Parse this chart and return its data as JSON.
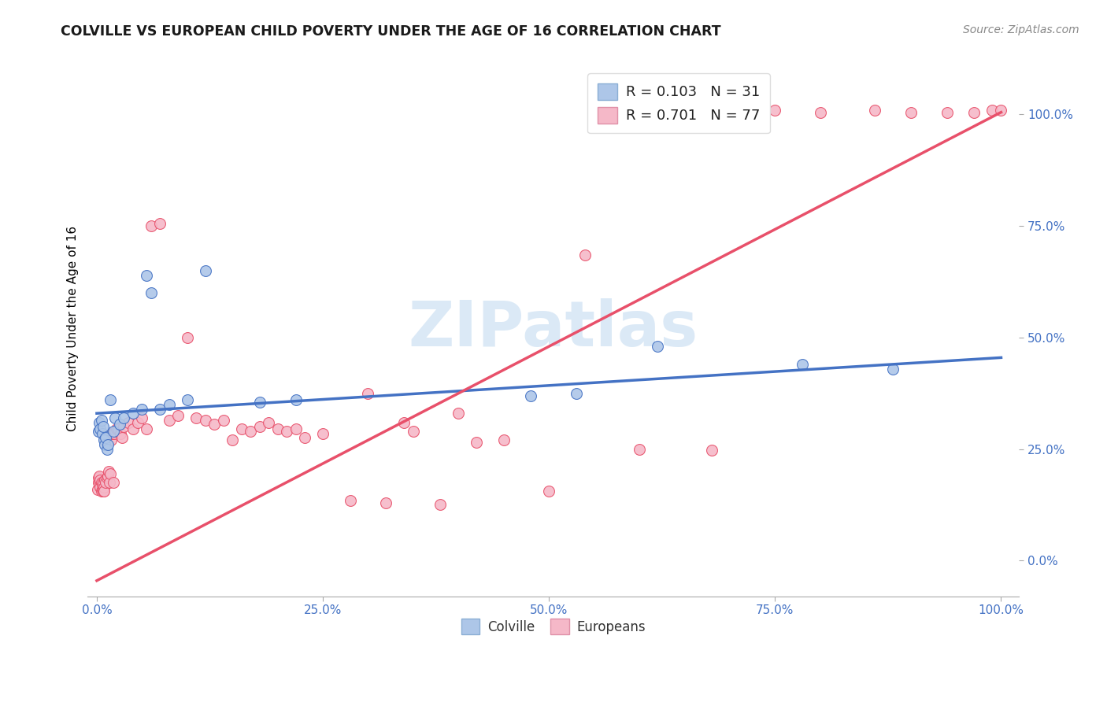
{
  "title": "COLVILLE VS EUROPEAN CHILD POVERTY UNDER THE AGE OF 16 CORRELATION CHART",
  "source": "Source: ZipAtlas.com",
  "ylabel": "Child Poverty Under the Age of 16",
  "colville_R": 0.103,
  "colville_N": 31,
  "european_R": 0.701,
  "european_N": 77,
  "colville_color": "#adc6e8",
  "european_color": "#f5b8c8",
  "colville_line_color": "#4472c4",
  "european_line_color": "#e8506a",
  "watermark_text": "ZIPatlas",
  "colville_x": [
    0.002,
    0.003,
    0.004,
    0.005,
    0.006,
    0.007,
    0.008,
    0.009,
    0.01,
    0.011,
    0.012,
    0.015,
    0.018,
    0.02,
    0.025,
    0.03,
    0.04,
    0.05,
    0.055,
    0.06,
    0.07,
    0.08,
    0.1,
    0.12,
    0.18,
    0.22,
    0.48,
    0.53,
    0.62,
    0.78,
    0.88
  ],
  "colville_y": [
    0.29,
    0.31,
    0.295,
    0.315,
    0.285,
    0.3,
    0.27,
    0.26,
    0.275,
    0.25,
    0.26,
    0.36,
    0.29,
    0.32,
    0.305,
    0.32,
    0.33,
    0.34,
    0.64,
    0.6,
    0.34,
    0.35,
    0.36,
    0.65,
    0.355,
    0.36,
    0.37,
    0.375,
    0.48,
    0.44,
    0.43
  ],
  "european_x": [
    0.001,
    0.002,
    0.002,
    0.003,
    0.003,
    0.004,
    0.004,
    0.005,
    0.005,
    0.006,
    0.006,
    0.007,
    0.007,
    0.008,
    0.008,
    0.009,
    0.01,
    0.011,
    0.012,
    0.013,
    0.014,
    0.015,
    0.016,
    0.017,
    0.018,
    0.019,
    0.02,
    0.022,
    0.024,
    0.026,
    0.028,
    0.03,
    0.035,
    0.04,
    0.045,
    0.05,
    0.055,
    0.06,
    0.07,
    0.08,
    0.09,
    0.1,
    0.11,
    0.12,
    0.13,
    0.14,
    0.15,
    0.16,
    0.17,
    0.18,
    0.19,
    0.2,
    0.21,
    0.22,
    0.23,
    0.25,
    0.28,
    0.3,
    0.32,
    0.34,
    0.35,
    0.38,
    0.4,
    0.42,
    0.45,
    0.5,
    0.54,
    0.6,
    0.68,
    0.75,
    0.8,
    0.86,
    0.9,
    0.94,
    0.97,
    0.99,
    1.0
  ],
  "european_y": [
    0.16,
    0.175,
    0.185,
    0.17,
    0.19,
    0.165,
    0.18,
    0.155,
    0.175,
    0.16,
    0.17,
    0.155,
    0.175,
    0.165,
    0.155,
    0.18,
    0.175,
    0.185,
    0.19,
    0.2,
    0.175,
    0.195,
    0.27,
    0.285,
    0.175,
    0.285,
    0.29,
    0.295,
    0.295,
    0.285,
    0.275,
    0.3,
    0.31,
    0.295,
    0.31,
    0.32,
    0.295,
    0.75,
    0.755,
    0.315,
    0.325,
    0.5,
    0.32,
    0.315,
    0.305,
    0.315,
    0.27,
    0.295,
    0.29,
    0.3,
    0.31,
    0.295,
    0.29,
    0.295,
    0.275,
    0.285,
    0.135,
    0.375,
    0.13,
    0.31,
    0.29,
    0.125,
    0.33,
    0.265,
    0.27,
    0.155,
    0.685,
    0.25,
    0.248,
    1.01,
    1.005,
    1.01,
    1.005,
    1.005,
    1.005,
    1.01,
    1.01
  ],
  "colville_trend_x": [
    0.0,
    1.0
  ],
  "colville_trend_y": [
    0.33,
    0.455
  ],
  "european_trend_x": [
    0.0,
    1.0
  ],
  "european_trend_y": [
    -0.045,
    1.005
  ],
  "xlim": [
    -0.01,
    1.02
  ],
  "ylim": [
    -0.08,
    1.12
  ],
  "xticks": [
    0.0,
    0.25,
    0.5,
    0.75,
    1.0
  ],
  "yticks": [
    0.0,
    0.25,
    0.5,
    0.75,
    1.0
  ],
  "xtick_labels": [
    "0.0%",
    "25.0%",
    "50.0%",
    "75.0%",
    "100.0%"
  ],
  "ytick_labels": [
    "0.0%",
    "25.0%",
    "50.0%",
    "75.0%",
    "100.0%"
  ]
}
